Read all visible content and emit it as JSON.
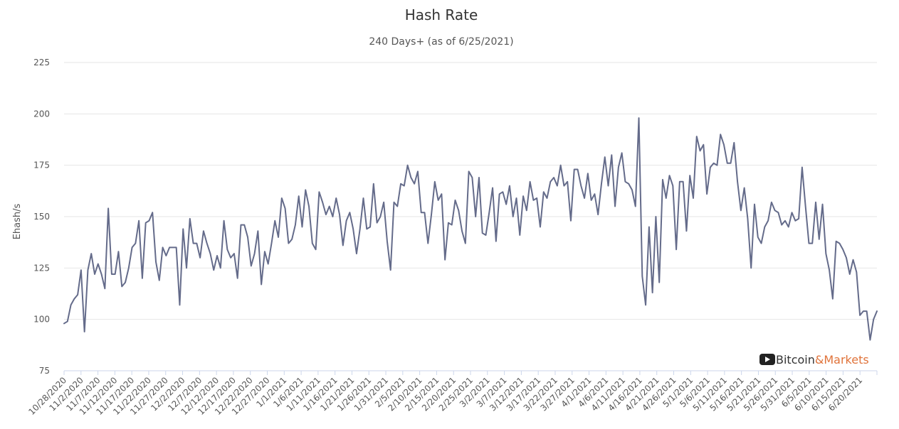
{
  "chart_data": {
    "type": "line",
    "title": "Hash Rate",
    "subtitle": "240 Days+ (as of 6/25/2021)",
    "ylabel": "Ehash/s",
    "ylim": [
      75,
      225
    ],
    "yticks": [
      75,
      100,
      125,
      150,
      175,
      200,
      225
    ],
    "grid": true,
    "legend": "none",
    "x_start": "10/28/2020",
    "x_end": "6/25/2021",
    "xtick_labels": [
      "10/28/2020",
      "11/2/2020",
      "11/7/2020",
      "11/12/2020",
      "11/17/2020",
      "11/22/2020",
      "11/27/2020",
      "12/2/2020",
      "12/7/2020",
      "12/12/2020",
      "12/17/2020",
      "12/22/2020",
      "12/27/2020",
      "1/1/2021",
      "1/6/2021",
      "1/11/2021",
      "1/16/2021",
      "1/21/2021",
      "1/26/2021",
      "1/31/2021",
      "2/5/2021",
      "2/10/2021",
      "2/15/2021",
      "2/20/2021",
      "2/25/2021",
      "3/2/2021",
      "3/7/2021",
      "3/12/2021",
      "3/17/2021",
      "3/22/2021",
      "3/27/2021",
      "4/1/2021",
      "4/6/2021",
      "4/11/2021",
      "4/16/2021",
      "4/21/2021",
      "4/26/2021",
      "5/1/2021",
      "5/6/2021",
      "5/11/2021",
      "5/16/2021",
      "5/21/2021",
      "5/26/2021",
      "5/31/2021",
      "6/5/2021",
      "6/10/2021",
      "6/15/2021",
      "6/20/2021"
    ],
    "series": [
      {
        "color": "#646b8a",
        "values": [
          98,
          99,
          107,
          110,
          112,
          124,
          94,
          124,
          132,
          122,
          127,
          122,
          115,
          154,
          122,
          122,
          133,
          116,
          118,
          125,
          135,
          137,
          148,
          120,
          147,
          148,
          152,
          128,
          119,
          135,
          131,
          135,
          135,
          135,
          107,
          144,
          125,
          149,
          137,
          137,
          130,
          143,
          137,
          132,
          124,
          131,
          125,
          148,
          134,
          130,
          132,
          120,
          146,
          146,
          140,
          126,
          132,
          143,
          117,
          133,
          127,
          137,
          148,
          140,
          159,
          154,
          137,
          139,
          146,
          160,
          145,
          163,
          155,
          137,
          134,
          162,
          157,
          151,
          155,
          150,
          159,
          151,
          136,
          148,
          152,
          144,
          132,
          144,
          159,
          144,
          145,
          166,
          147,
          150,
          157,
          138,
          124,
          157,
          155,
          166,
          165,
          175,
          169,
          166,
          172,
          152,
          152,
          137,
          151,
          167,
          158,
          161,
          129,
          147,
          146,
          158,
          153,
          143,
          137,
          172,
          169,
          150,
          169,
          142,
          141,
          152,
          164,
          138,
          161,
          162,
          156,
          165,
          150,
          159,
          141,
          160,
          153,
          167,
          158,
          159,
          145,
          162,
          159,
          167,
          169,
          165,
          175,
          165,
          167,
          148,
          173,
          173,
          165,
          159,
          171,
          158,
          161,
          151,
          166,
          179,
          165,
          180,
          155,
          174,
          181,
          167,
          166,
          163,
          155,
          198,
          121,
          107,
          145,
          113,
          150,
          118,
          168,
          159,
          170,
          165,
          134,
          167,
          167,
          143,
          170,
          159,
          189,
          182,
          185,
          161,
          174,
          176,
          175,
          190,
          185,
          176,
          176,
          186,
          167,
          153,
          164,
          149,
          125,
          156,
          140,
          137,
          145,
          148,
          157,
          153,
          152,
          146,
          148,
          145,
          152,
          148,
          149,
          174,
          155,
          137,
          137,
          157,
          139,
          156,
          132,
          124,
          110,
          138,
          137,
          134,
          130,
          122,
          129,
          123,
          102,
          104,
          104,
          90,
          100,
          104
        ]
      }
    ]
  },
  "watermark": {
    "icon": "play-icon",
    "part1": "Bitcoin",
    "part2": "&Markets"
  }
}
